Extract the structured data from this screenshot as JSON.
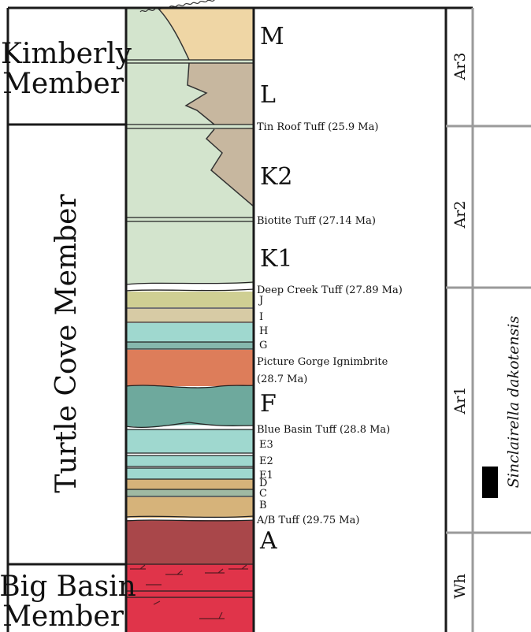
{
  "members": {
    "kimberly": [
      "Kimberly",
      "Member"
    ],
    "turtle_cove": "Turtle Cove Member",
    "big_basin": [
      "Big Basin",
      "Member"
    ]
  },
  "units": {
    "M": "M",
    "L": "L",
    "K2": "K2",
    "K1": "K1",
    "J": "J",
    "I": "I",
    "H": "H",
    "G": "G",
    "F": "F",
    "E3": "E3",
    "E2": "E2",
    "E1": "E1",
    "D": "D",
    "C": "C",
    "B": "B",
    "A": "A"
  },
  "tuffs": {
    "tin_roof": "Tin Roof Tuff (25.9 Ma)",
    "biotite": "Biotite Tuff (27.14 Ma)",
    "deep_creek": "Deep Creek Tuff (27.89 Ma)",
    "picture_gorge": [
      "Picture Gorge Ignimbrite",
      "(28.7 Ma)"
    ],
    "blue_basin": "Blue Basin Tuff (28.8 Ma)",
    "ab": "A/B Tuff (29.75 Ma)"
  },
  "biozones": {
    "ar3": "Ar3",
    "ar2": "Ar2",
    "ar1": "Ar1",
    "wh": "Wh"
  },
  "taxon": "Sinclairella dakotensis",
  "colors": {
    "green_tuff": "#d3e4cd",
    "tan": "#c7b79f",
    "sand": "#efd6a5",
    "olive": "#cfcf93",
    "light_tan": "#d7cba5",
    "teal_light": "#9fd8cf",
    "teal_dark": "#6ea99d",
    "orange": "#dd7d5a",
    "brown_tan": "#d6b37a",
    "gray_green": "#9fb9a3",
    "dark_red": "#a9474a",
    "red": "#e0344a",
    "frame": "#1a1a1a",
    "gray_line": "#9a9a9a"
  }
}
